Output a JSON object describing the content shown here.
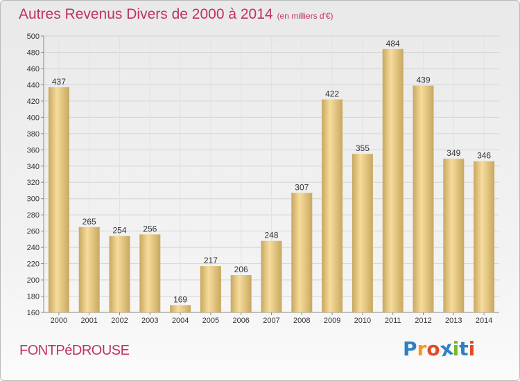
{
  "title": "Autres Revenus Divers de 2000 à 2014",
  "title_unit": "(en milliers d'€)",
  "commune": "FONTPéDROUSE",
  "logo": {
    "letters": [
      "P",
      "r",
      "o",
      "x",
      "i",
      "t",
      "i"
    ],
    "colors": [
      "#2f7fc1",
      "#f39a1e",
      "#e04b2a",
      "#2f7fc1",
      "#7ab929",
      "#2f7fc1",
      "#e04b2a"
    ]
  },
  "chart_data": {
    "type": "bar",
    "categories": [
      "2000",
      "2001",
      "2002",
      "2003",
      "2004",
      "2005",
      "2006",
      "2007",
      "2008",
      "2009",
      "2010",
      "2011",
      "2012",
      "2013",
      "2014"
    ],
    "values": [
      437,
      265,
      254,
      256,
      169,
      217,
      206,
      248,
      307,
      422,
      355,
      484,
      439,
      349,
      346
    ],
    "ylim": [
      160,
      500
    ],
    "yticks": [
      160,
      180,
      200,
      220,
      240,
      260,
      280,
      300,
      320,
      340,
      360,
      380,
      400,
      420,
      440,
      460,
      480,
      500
    ],
    "grid": true,
    "colors": {
      "bar_light": "#f6dc9c",
      "bar_dark": "#c8a860"
    }
  }
}
